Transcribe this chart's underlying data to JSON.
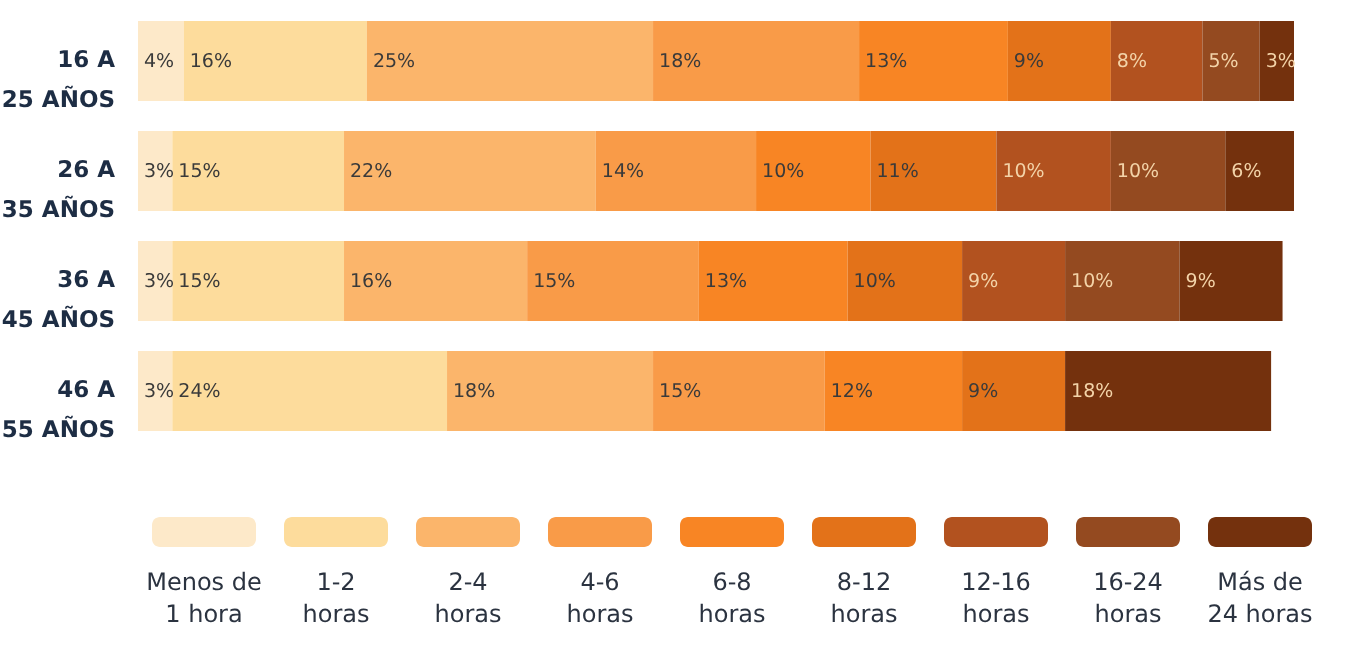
{
  "chart_data": {
    "type": "bar",
    "orientation": "horizontal",
    "stacked": true,
    "legend": "bottom",
    "categories": [
      "16 A\n25 AÑOS",
      "26 A\n35 AÑOS",
      "36 A\n45 AÑOS",
      "46 A\n55 AÑOS"
    ],
    "series": [
      {
        "name": "Menos de\n1 hora",
        "color": "#fde9c9",
        "values": [
          4,
          3,
          3,
          3
        ],
        "value_labels": [
          "4%",
          "3%",
          "3%",
          "3%"
        ]
      },
      {
        "name": "1-2\nhoras",
        "color": "#fddc9c",
        "values": [
          16,
          15,
          15,
          24
        ],
        "value_labels": [
          "16%",
          "15%",
          "15%",
          "24%"
        ]
      },
      {
        "name": "2-4\nhoras",
        "color": "#fbb56b",
        "values": [
          25,
          22,
          16,
          18
        ],
        "value_labels": [
          "25%",
          "22%",
          "16%",
          "18%"
        ]
      },
      {
        "name": "4-6\nhoras",
        "color": "#f99b48",
        "values": [
          18,
          14,
          15,
          15
        ],
        "value_labels": [
          "18%",
          "14%",
          "15%",
          "15%"
        ]
      },
      {
        "name": "6-8\nhoras",
        "color": "#f88524",
        "values": [
          13,
          10,
          13,
          12
        ],
        "value_labels": [
          "13%",
          "10%",
          "13%",
          "12%"
        ]
      },
      {
        "name": "8-12\nhoras",
        "color": "#e37219",
        "values": [
          9,
          11,
          10,
          9
        ],
        "value_labels": [
          "9%",
          "11%",
          "10%",
          "9%"
        ]
      },
      {
        "name": "12-16\nhoras",
        "color": "#b2521f",
        "values": [
          8,
          10,
          9,
          null
        ],
        "value_labels": [
          "8%",
          "10%",
          "9%",
          null
        ]
      },
      {
        "name": "16-24\nhoras",
        "color": "#944a20",
        "values": [
          5,
          10,
          10,
          null
        ],
        "value_labels": [
          "5%",
          "10%",
          "10%",
          null
        ]
      },
      {
        "name": "Más de\n24 horas",
        "color": "#74310d",
        "values": [
          3,
          6,
          9,
          18
        ],
        "value_labels": [
          "3%",
          "6%",
          "9%",
          "18%"
        ]
      }
    ]
  }
}
